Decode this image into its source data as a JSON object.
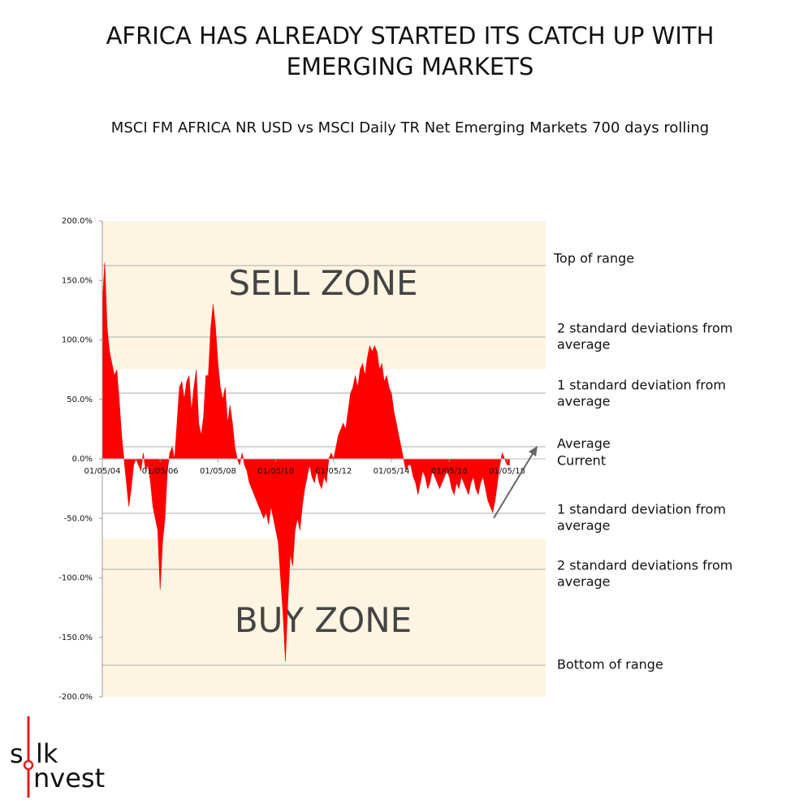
{
  "chart_data": {
    "type": "area",
    "title": [
      "AFRICA HAS ALREADY STARTED ITS CATCH UP WITH",
      "EMERGING MARKETS"
    ],
    "subtitle": "MSCI FM AFRICA NR USD vs MSCI Daily TR Net Emerging Markets  700 days rolling",
    "color": "#ff0000",
    "zone_color": "#fdf5e2",
    "xlim": [
      "01/05/04",
      "01/09/19"
    ],
    "xticks": [
      "01/05/04",
      "01/05/06",
      "01/05/08",
      "01/05/10",
      "01/05/12",
      "01/05/14",
      "01/05/16",
      "01/05/18"
    ],
    "ylim": [
      -200,
      200
    ],
    "yticks": [
      {
        "value": 200,
        "label": "200.0%"
      },
      {
        "value": 150,
        "label": "150.0%"
      },
      {
        "value": 100,
        "label": "100.0%"
      },
      {
        "value": 50,
        "label": "50.0%"
      },
      {
        "value": 0,
        "label": "0.0%"
      },
      {
        "value": -50,
        "label": "-50.0%"
      },
      {
        "value": -100,
        "label": "-100.0%"
      },
      {
        "value": -150,
        "label": "-150.0%"
      },
      {
        "value": -200,
        "label": "-200.0%"
      }
    ],
    "grid": false,
    "zones": [
      {
        "label": "SELL ZONE",
        "from": 75,
        "to": 200
      },
      {
        "label": "BUY ZONE",
        "from": -200,
        "to": -67
      }
    ],
    "reference_lines": [
      {
        "label": [
          "Top of range"
        ],
        "value": 162.5
      },
      {
        "label": [
          "2 standard deviations from",
          "average"
        ],
        "value": 102.4
      },
      {
        "label": [
          "1 standard deviation from",
          "average"
        ],
        "value": 55.3
      },
      {
        "label": [
          "Average"
        ],
        "value": 10.2
      },
      {
        "label": [
          "1 standard deviation from",
          "average"
        ],
        "value": -45.7
      },
      {
        "label": [
          "2 standard deviations from",
          "average"
        ],
        "value": -92.8
      },
      {
        "label": [
          "Bottom of range"
        ],
        "value": -173.4
      }
    ],
    "annotations": [
      "Current"
    ],
    "logo": [
      "s",
      "lk",
      "nvest"
    ],
    "x": [
      "01/05/04",
      "01/06/04",
      "01/07/04",
      "01/08/04",
      "01/09/04",
      "01/10/04",
      "01/11/04",
      "01/12/04",
      "01/01/05",
      "01/02/05",
      "01/03/05",
      "01/04/05",
      "01/05/05",
      "01/06/05",
      "01/07/05",
      "01/08/05",
      "01/09/05",
      "01/10/05",
      "01/11/05",
      "01/12/05",
      "01/01/06",
      "01/02/06",
      "01/03/06",
      "01/04/06",
      "01/05/06",
      "01/06/06",
      "01/07/06",
      "01/08/06",
      "01/09/06",
      "01/10/06",
      "01/11/06",
      "01/12/06",
      "01/01/07",
      "01/02/07",
      "01/03/07",
      "01/04/07",
      "01/05/07",
      "01/06/07",
      "01/07/07",
      "01/08/07",
      "01/09/07",
      "01/10/07",
      "01/11/07",
      "01/12/07",
      "01/01/08",
      "01/02/08",
      "01/03/08",
      "01/04/08",
      "01/05/08",
      "01/06/08",
      "01/07/08",
      "01/08/08",
      "01/09/08",
      "01/10/08",
      "01/11/08",
      "01/12/08",
      "01/01/09",
      "01/02/09",
      "01/03/09",
      "01/04/09",
      "01/05/09",
      "01/06/09",
      "01/07/09",
      "01/08/09",
      "01/09/09",
      "01/10/09",
      "01/11/09",
      "01/12/09",
      "01/01/10",
      "01/02/10",
      "01/03/10",
      "01/04/10",
      "01/05/10",
      "01/06/10",
      "01/07/10",
      "01/08/10",
      "01/09/10",
      "01/10/10",
      "01/11/10",
      "01/12/10",
      "01/01/11",
      "01/02/11",
      "01/03/11",
      "01/04/11",
      "01/05/11",
      "01/06/11",
      "01/07/11",
      "01/08/11",
      "01/09/11",
      "01/10/11",
      "01/11/11",
      "01/12/11",
      "01/01/12",
      "01/02/12",
      "01/03/12",
      "01/04/12",
      "01/05/12",
      "01/06/12",
      "01/07/12",
      "01/08/12",
      "01/09/12",
      "01/10/12",
      "01/11/12",
      "01/12/12",
      "01/01/13",
      "01/02/13",
      "01/03/13",
      "01/04/13",
      "01/05/13",
      "01/06/13",
      "01/07/13",
      "01/08/13",
      "01/09/13",
      "01/10/13",
      "01/11/13",
      "01/12/13",
      "01/01/14",
      "01/02/14",
      "01/03/14",
      "01/04/14",
      "01/05/14",
      "01/06/14",
      "01/07/14",
      "01/08/14",
      "01/09/14",
      "01/10/14",
      "01/11/14",
      "01/12/14",
      "01/01/15",
      "01/02/15",
      "01/03/15",
      "01/04/15",
      "01/05/15",
      "01/06/15",
      "01/07/15",
      "01/08/15",
      "01/09/15",
      "01/10/15",
      "01/11/15",
      "01/12/15",
      "01/01/16",
      "01/02/16",
      "01/03/16",
      "01/04/16",
      "01/05/16",
      "01/06/16",
      "01/07/16",
      "01/08/16",
      "01/09/16",
      "01/10/16",
      "01/11/16",
      "01/12/16",
      "01/01/17",
      "01/02/17",
      "01/03/17",
      "01/04/17",
      "01/05/17",
      "01/06/17",
      "01/07/17",
      "01/08/17",
      "01/09/17",
      "01/10/17",
      "01/11/17",
      "01/12/17",
      "01/01/18",
      "01/02/18",
      "01/03/18",
      "01/04/18",
      "01/05/18",
      "01/06/18"
    ],
    "values": [
      130,
      165,
      110,
      90,
      80,
      70,
      75,
      50,
      20,
      0,
      -20,
      -40,
      -25,
      -5,
      0,
      -5,
      -10,
      5,
      -10,
      -5,
      -20,
      -40,
      -50,
      -60,
      -110,
      -70,
      -50,
      -10,
      5,
      10,
      0,
      30,
      60,
      65,
      50,
      65,
      70,
      40,
      60,
      75,
      30,
      20,
      35,
      70,
      70,
      110,
      130,
      110,
      80,
      60,
      50,
      60,
      30,
      45,
      30,
      10,
      0,
      -5,
      5,
      -5,
      -10,
      -20,
      -25,
      -30,
      -35,
      -40,
      -45,
      -50,
      -45,
      -55,
      -40,
      -50,
      -60,
      -70,
      -100,
      -130,
      -170,
      -120,
      -80,
      -90,
      -60,
      -50,
      -60,
      -40,
      -25,
      -15,
      -5,
      -15,
      -20,
      -10,
      -20,
      -25,
      -15,
      -20,
      0,
      5,
      0,
      10,
      20,
      25,
      30,
      25,
      40,
      55,
      60,
      70,
      60,
      75,
      80,
      70,
      85,
      95,
      90,
      95,
      90,
      75,
      80,
      65,
      70,
      60,
      55,
      40,
      30,
      20,
      10,
      0,
      -10,
      -5,
      -5,
      -15,
      -20,
      -30,
      -20,
      -10,
      -15,
      -25,
      -20,
      -10,
      -15,
      -20,
      -25,
      -20,
      -15,
      -10,
      -15,
      -25,
      -30,
      -20,
      -25,
      -15,
      -20,
      -25,
      -30,
      -20,
      -15,
      -25,
      -30,
      -20,
      -15,
      -25,
      -35,
      -40,
      -45,
      -35,
      -20,
      -5,
      5,
      0,
      -5,
      -5
    ]
  }
}
